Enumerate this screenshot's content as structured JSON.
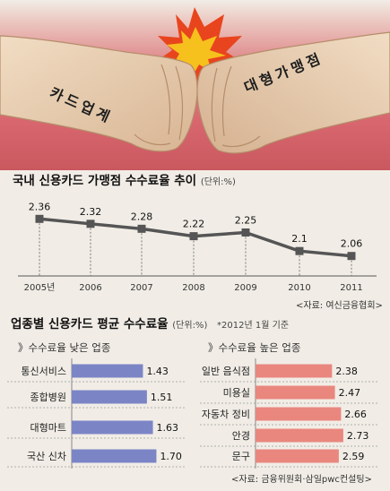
{
  "illustration": {
    "left_label": "카드업계",
    "right_label": "대형가맹점",
    "colors": {
      "background": "#d9676f",
      "burst": "#e8451e",
      "burst_inner": "#f6c11c",
      "skin": "#ead2b6"
    }
  },
  "line_section": {
    "title": "국내 신용카드 가맹점 수수료율 추이",
    "unit": "(단위:%)",
    "source": "<자료: 여신금융협회>"
  },
  "bar_section": {
    "title": "업종별 신용카드 평균 수수료율",
    "unit": "(단위:%)",
    "note": "*2012년 1월 기준",
    "source": "<자료: 금융위원회·삼일pwc컨설팅>"
  },
  "chart_data": [
    {
      "type": "line",
      "title": "국내 신용카드 가맹점 수수료율 추이",
      "x": [
        "2005년",
        "2006",
        "2007",
        "2008",
        "2009",
        "2010",
        "2011"
      ],
      "series": [
        {
          "values": [
            2.36,
            2.32,
            2.28,
            2.22,
            2.25,
            2.1,
            2.06
          ]
        }
      ],
      "value_labels": [
        "2.36",
        "2.32",
        "2.28",
        "2.22",
        "2.25",
        "2.1",
        "2.06"
      ],
      "ylim": [
        2.0,
        2.42
      ],
      "grid": "vertical dashed",
      "color": "#555555"
    },
    {
      "type": "bar",
      "orientation": "horizontal",
      "subtitle": "》수수료율 낮은 업종",
      "categories": [
        "통신서비스",
        "종합병원",
        "대형마트",
        "국산 신차"
      ],
      "values": [
        1.43,
        1.51,
        1.63,
        1.7
      ],
      "value_labels": [
        "1.43",
        "1.51",
        "1.63",
        "1.70"
      ],
      "xlim": [
        0,
        1.8
      ],
      "color": "#7b85c6"
    },
    {
      "type": "bar",
      "orientation": "horizontal",
      "subtitle": "》수수료율 높은 업종",
      "categories": [
        "일반 음식점",
        "미용실",
        "자동차 정비",
        "안경",
        "문구"
      ],
      "values": [
        2.38,
        2.47,
        2.66,
        2.73,
        2.59
      ],
      "value_labels": [
        "2.38",
        "2.47",
        "2.66",
        "2.73",
        "2.59"
      ],
      "xlim": [
        0,
        2.9
      ],
      "color": "#e9877f"
    }
  ]
}
